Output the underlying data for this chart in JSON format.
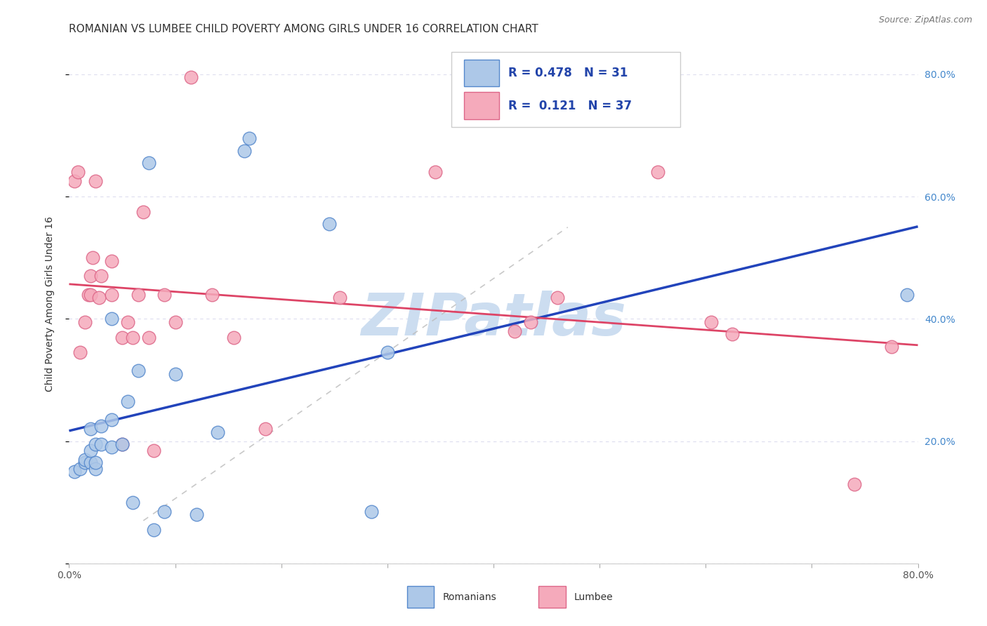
{
  "title": "ROMANIAN VS LUMBEE CHILD POVERTY AMONG GIRLS UNDER 16 CORRELATION CHART",
  "source": "Source: ZipAtlas.com",
  "ylabel": "Child Poverty Among Girls Under 16",
  "xlim": [
    0,
    0.8
  ],
  "ylim": [
    0.0,
    0.85
  ],
  "xticks": [
    0.0,
    0.1,
    0.2,
    0.3,
    0.4,
    0.5,
    0.6,
    0.7,
    0.8
  ],
  "yticks": [
    0.0,
    0.2,
    0.4,
    0.6,
    0.8
  ],
  "right_yticklabels": [
    "",
    "20.0%",
    "40.0%",
    "60.0%",
    "80.0%"
  ],
  "romanian_R": 0.478,
  "romanian_N": 31,
  "lumbee_R": 0.121,
  "lumbee_N": 37,
  "romanian_color": "#adc8e8",
  "lumbee_color": "#f5aabb",
  "romanian_edge": "#5588cc",
  "lumbee_edge": "#dd6688",
  "romanian_line_color": "#2244bb",
  "lumbee_line_color": "#dd4466",
  "ref_line_color": "#bbbbbb",
  "watermark_color": "#ccddf0",
  "watermark_text": "ZIPatlas",
  "background_color": "#ffffff",
  "grid_color": "#ddddee",
  "title_fontsize": 11,
  "axis_label_fontsize": 10,
  "tick_fontsize": 10,
  "romanian_x": [
    0.005,
    0.01,
    0.015,
    0.015,
    0.02,
    0.02,
    0.02,
    0.025,
    0.025,
    0.025,
    0.03,
    0.03,
    0.04,
    0.04,
    0.04,
    0.05,
    0.055,
    0.06,
    0.065,
    0.075,
    0.08,
    0.09,
    0.1,
    0.12,
    0.14,
    0.165,
    0.17,
    0.245,
    0.285,
    0.3,
    0.79
  ],
  "romanian_y": [
    0.15,
    0.155,
    0.165,
    0.17,
    0.165,
    0.185,
    0.22,
    0.155,
    0.165,
    0.195,
    0.195,
    0.225,
    0.19,
    0.235,
    0.4,
    0.195,
    0.265,
    0.1,
    0.315,
    0.655,
    0.055,
    0.085,
    0.31,
    0.08,
    0.215,
    0.675,
    0.695,
    0.555,
    0.085,
    0.345,
    0.44
  ],
  "lumbee_x": [
    0.005,
    0.008,
    0.01,
    0.015,
    0.018,
    0.02,
    0.02,
    0.022,
    0.025,
    0.028,
    0.03,
    0.04,
    0.04,
    0.05,
    0.05,
    0.055,
    0.06,
    0.065,
    0.07,
    0.075,
    0.08,
    0.09,
    0.1,
    0.115,
    0.135,
    0.155,
    0.185,
    0.255,
    0.345,
    0.42,
    0.435,
    0.46,
    0.555,
    0.605,
    0.625,
    0.74,
    0.775
  ],
  "lumbee_y": [
    0.625,
    0.64,
    0.345,
    0.395,
    0.44,
    0.44,
    0.47,
    0.5,
    0.625,
    0.435,
    0.47,
    0.44,
    0.495,
    0.195,
    0.37,
    0.395,
    0.37,
    0.44,
    0.575,
    0.37,
    0.185,
    0.44,
    0.395,
    0.795,
    0.44,
    0.37,
    0.22,
    0.435,
    0.64,
    0.38,
    0.395,
    0.435,
    0.64,
    0.395,
    0.375,
    0.13,
    0.355
  ]
}
